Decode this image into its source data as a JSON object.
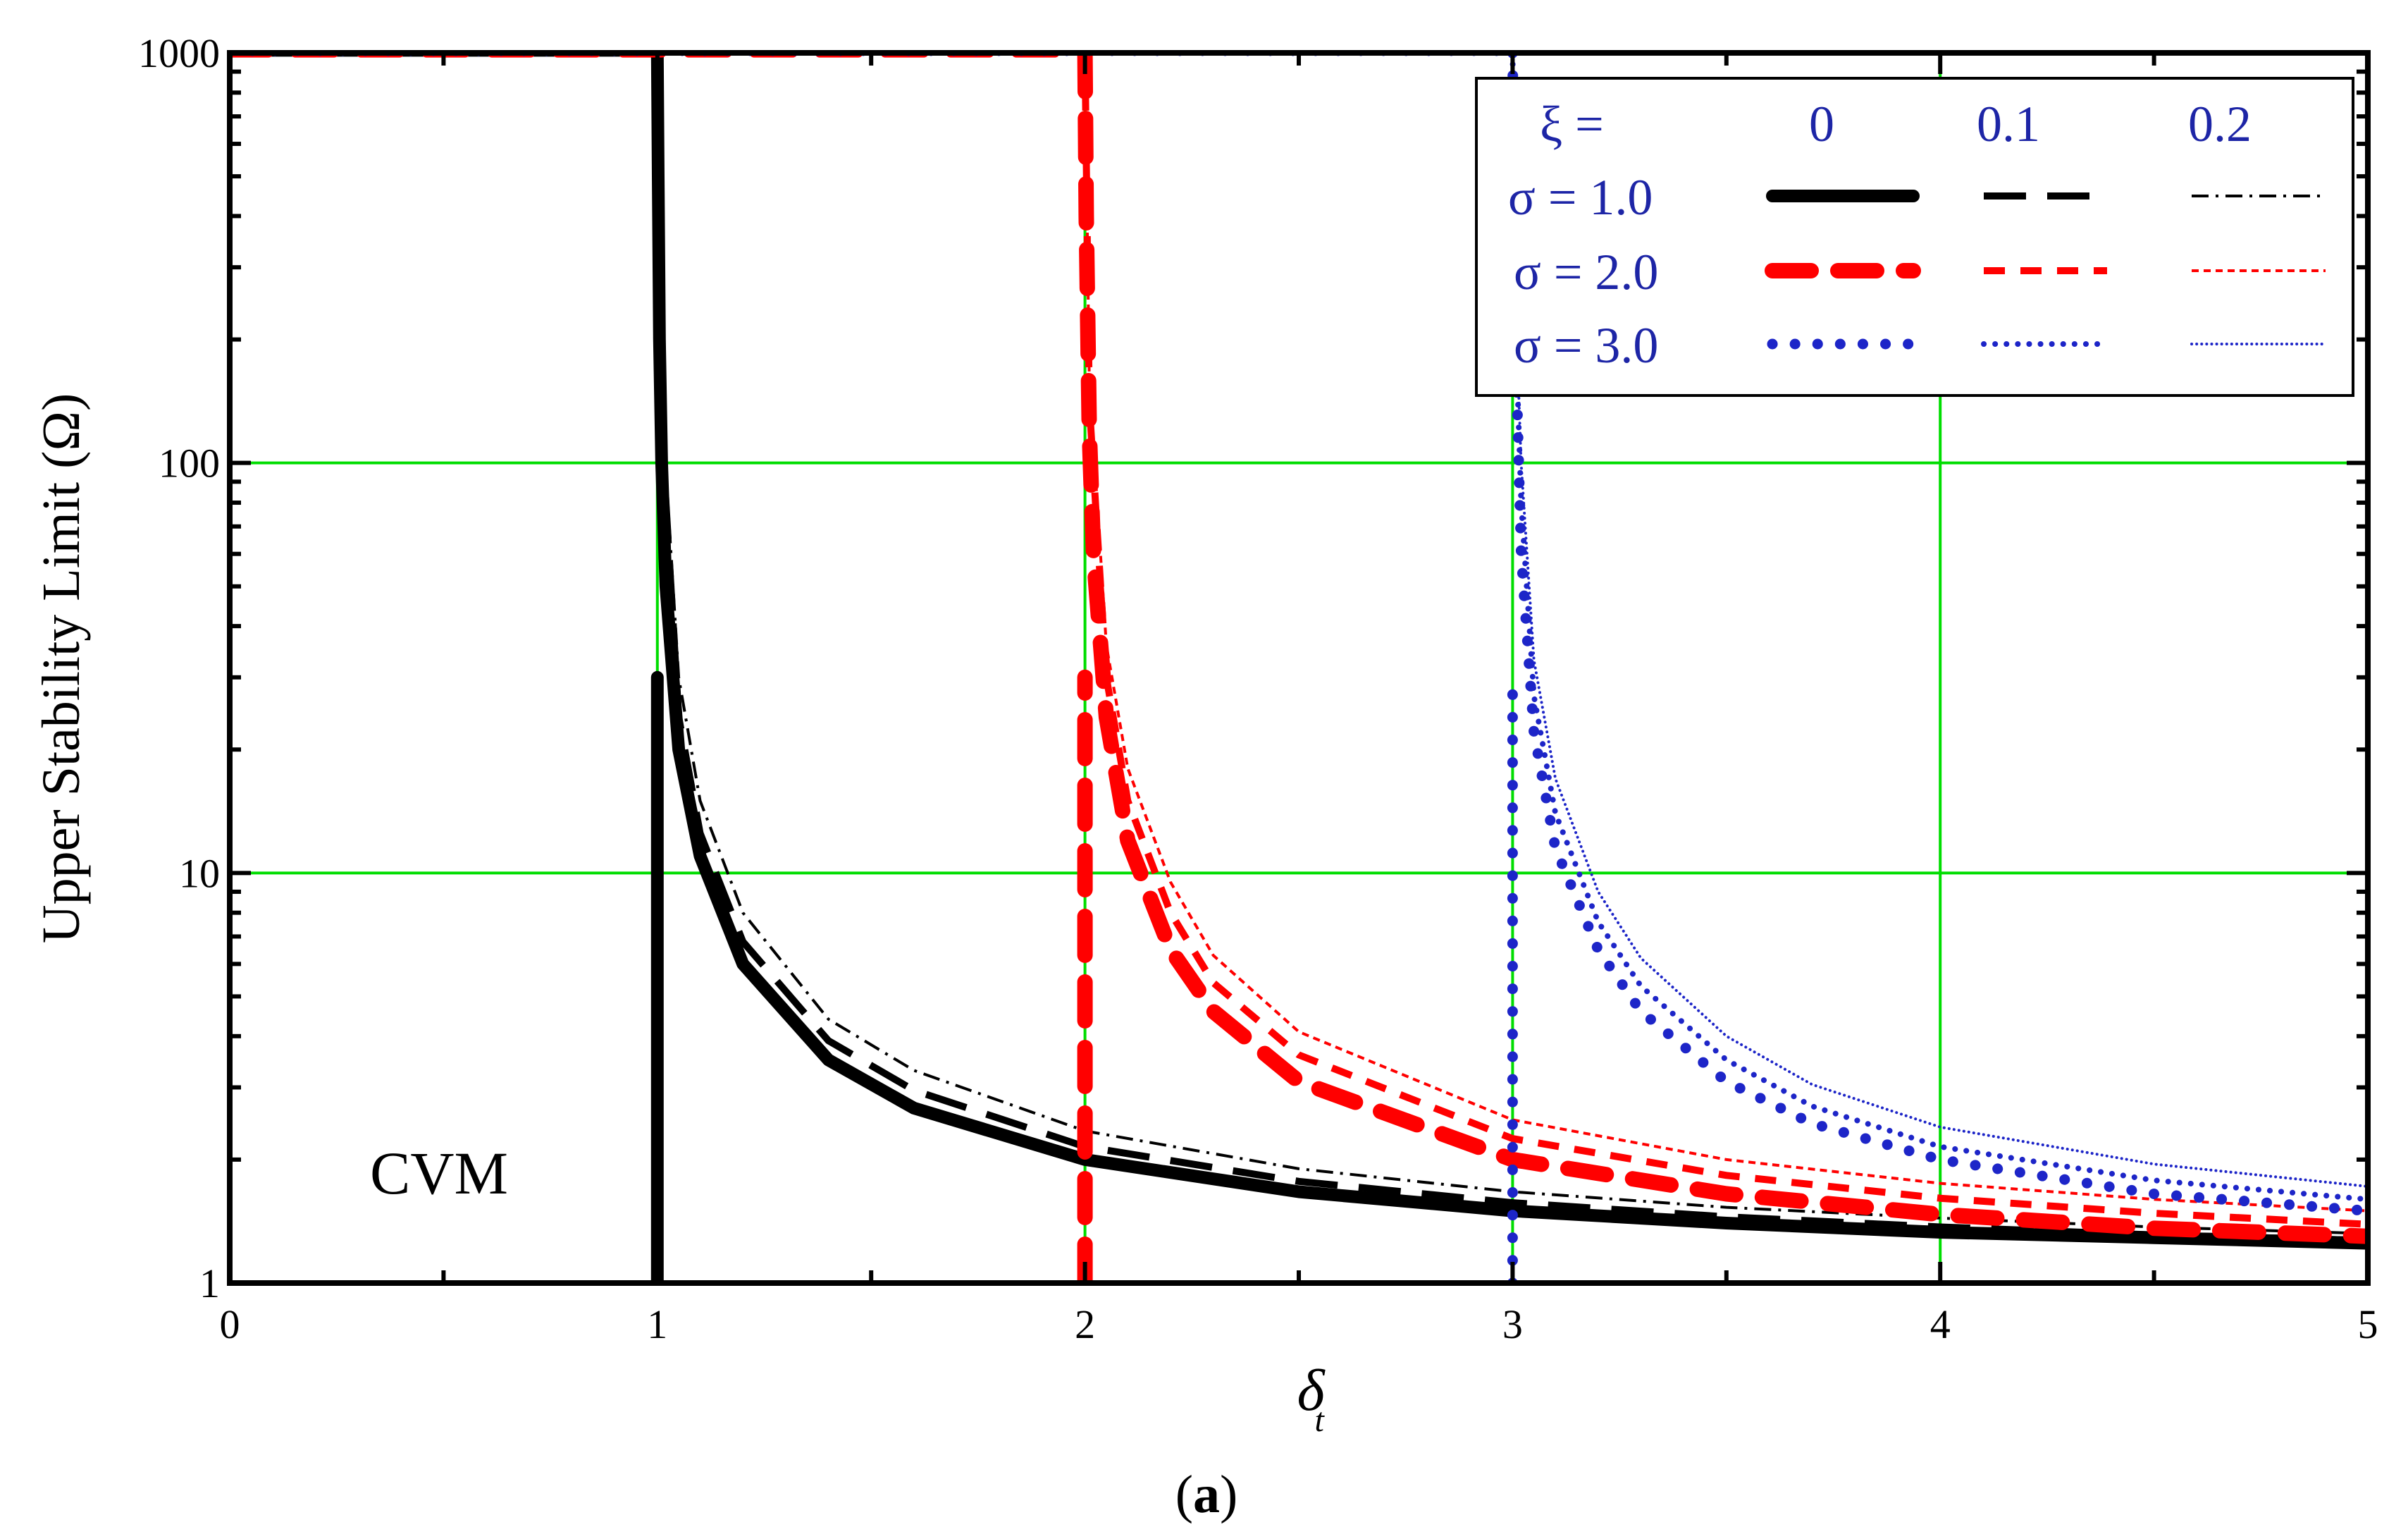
{
  "chart_data": {
    "type": "line",
    "title": "",
    "caption": {
      "open": "(",
      "letter": "a",
      "close": ")"
    },
    "annotation": "CVM",
    "xlabel": "δ",
    "xlabel_subscript": "t",
    "ylabel": "Upper  Stability  Limit (Ω)",
    "xlim": [
      0,
      5
    ],
    "ylim": [
      1,
      1000
    ],
    "yscale": "log",
    "grid": true,
    "grid_color": "#00dd00",
    "xticks": [
      0,
      1,
      2,
      3,
      4,
      5
    ],
    "xtick_labels": [
      "0",
      "1",
      "2",
      "3",
      "4",
      "5"
    ],
    "yticks": [
      1,
      10,
      100,
      1000
    ],
    "ytick_labels": [
      "1",
      "10",
      "100",
      "1000"
    ],
    "legend": {
      "position": "top-right",
      "xi_label": "ξ =",
      "xi_values": [
        "0",
        "0.1",
        "0.2"
      ],
      "rows": [
        {
          "label": "σ = 1.0",
          "color": "#000000"
        },
        {
          "label": "σ = 2.0",
          "color": "#ff0000"
        },
        {
          "label": "σ = 3.0",
          "color": "#1d25c8"
        }
      ]
    },
    "series": [
      {
        "name": "σ = 1.0, ξ = 0",
        "sigma": 1.0,
        "xi": 0,
        "color": "#000000",
        "style": "solid-thick",
        "x": [
          1.0,
          1.002,
          1.005,
          1.01,
          1.02,
          1.05,
          1.1,
          1.2,
          1.4,
          1.6,
          2.0,
          2.5,
          3.0,
          3.5,
          4.0,
          4.5,
          5.0
        ],
        "y": [
          1000,
          500,
          200,
          100,
          50,
          20,
          11,
          6,
          3.5,
          2.67,
          2.0,
          1.67,
          1.5,
          1.4,
          1.33,
          1.29,
          1.25
        ]
      },
      {
        "name": "σ = 1.0, ξ = 0.1",
        "sigma": 1.0,
        "xi": 0.1,
        "color": "#000000",
        "style": "dash-long",
        "x": [
          1.0,
          1.01,
          1.05,
          1.1,
          1.2,
          1.4,
          1.6,
          2.0,
          2.5,
          3.0,
          3.5,
          4.0,
          4.5,
          5.0
        ],
        "y": [
          1000,
          120,
          24,
          12.5,
          6.8,
          3.9,
          2.95,
          2.15,
          1.77,
          1.57,
          1.45,
          1.37,
          1.31,
          1.27
        ]
      },
      {
        "name": "σ = 1.0, ξ = 0.2",
        "sigma": 1.0,
        "xi": 0.2,
        "color": "#000000",
        "style": "dash-dot",
        "x": [
          1.0,
          1.01,
          1.05,
          1.1,
          1.2,
          1.4,
          1.6,
          2.0,
          2.5,
          3.0,
          3.5,
          4.0,
          4.5,
          5.0
        ],
        "y": [
          1000,
          140,
          30,
          15,
          8,
          4.4,
          3.3,
          2.35,
          1.9,
          1.67,
          1.53,
          1.44,
          1.37,
          1.32
        ]
      },
      {
        "name": "σ = 2.0, ξ = 0",
        "sigma": 2.0,
        "xi": 0,
        "color": "#ff0000",
        "style": "dash-thick",
        "x": [
          2.0,
          2.003,
          2.01,
          2.02,
          2.05,
          2.1,
          2.2,
          2.3,
          2.5,
          3.0,
          3.5,
          4.0,
          4.5,
          5.0
        ],
        "y": [
          1000,
          400,
          120,
          60,
          24,
          12,
          6.5,
          4.6,
          3.1,
          2.0,
          1.65,
          1.47,
          1.36,
          1.3
        ]
      },
      {
        "name": "σ = 2.0, ξ = 0.1",
        "sigma": 2.0,
        "xi": 0.1,
        "color": "#ff0000",
        "style": "dash-med",
        "x": [
          2.0,
          2.01,
          2.05,
          2.1,
          2.2,
          2.3,
          2.5,
          3.0,
          3.5,
          4.0,
          4.5,
          5.0
        ],
        "y": [
          1000,
          140,
          30,
          15,
          8,
          5.4,
          3.6,
          2.25,
          1.83,
          1.61,
          1.48,
          1.39
        ]
      },
      {
        "name": "σ = 2.0, ξ = 0.2",
        "sigma": 2.0,
        "xi": 0.2,
        "color": "#ff0000",
        "style": "dash-short",
        "x": [
          2.0,
          2.01,
          2.05,
          2.1,
          2.2,
          2.3,
          2.5,
          3.0,
          3.5,
          4.0,
          4.5,
          5.0
        ],
        "y": [
          1000,
          160,
          36,
          18,
          9.5,
          6.3,
          4.1,
          2.5,
          2.0,
          1.75,
          1.6,
          1.5
        ]
      },
      {
        "name": "σ = 3.0, ξ = 0",
        "sigma": 3.0,
        "xi": 0,
        "color": "#1d25c8",
        "style": "dot-large",
        "x": [
          3.0,
          3.005,
          3.01,
          3.02,
          3.05,
          3.1,
          3.2,
          3.3,
          3.5,
          3.7,
          4.0,
          4.5,
          5.0
        ],
        "y": [
          1000,
          300,
          150,
          60,
          22,
          11.5,
          6.5,
          4.6,
          3.1,
          2.45,
          2.0,
          1.65,
          1.5
        ]
      },
      {
        "name": "σ = 3.0, ξ = 0.1",
        "sigma": 3.0,
        "xi": 0.1,
        "color": "#1d25c8",
        "style": "dot-med",
        "x": [
          3.0,
          3.01,
          3.02,
          3.05,
          3.1,
          3.2,
          3.3,
          3.5,
          3.7,
          4.0,
          4.5,
          5.0
        ],
        "y": [
          1000,
          170,
          80,
          27,
          14,
          7.6,
          5.3,
          3.5,
          2.7,
          2.15,
          1.78,
          1.6
        ]
      },
      {
        "name": "σ = 3.0, ξ = 0.2",
        "sigma": 3.0,
        "xi": 0.2,
        "color": "#1d25c8",
        "style": "dot-small",
        "x": [
          3.0,
          3.01,
          3.02,
          3.05,
          3.1,
          3.2,
          3.3,
          3.5,
          3.7,
          4.0,
          4.5,
          5.0
        ],
        "y": [
          1000,
          200,
          100,
          33,
          17,
          9,
          6.2,
          4.0,
          3.05,
          2.4,
          1.95,
          1.72
        ]
      }
    ]
  }
}
